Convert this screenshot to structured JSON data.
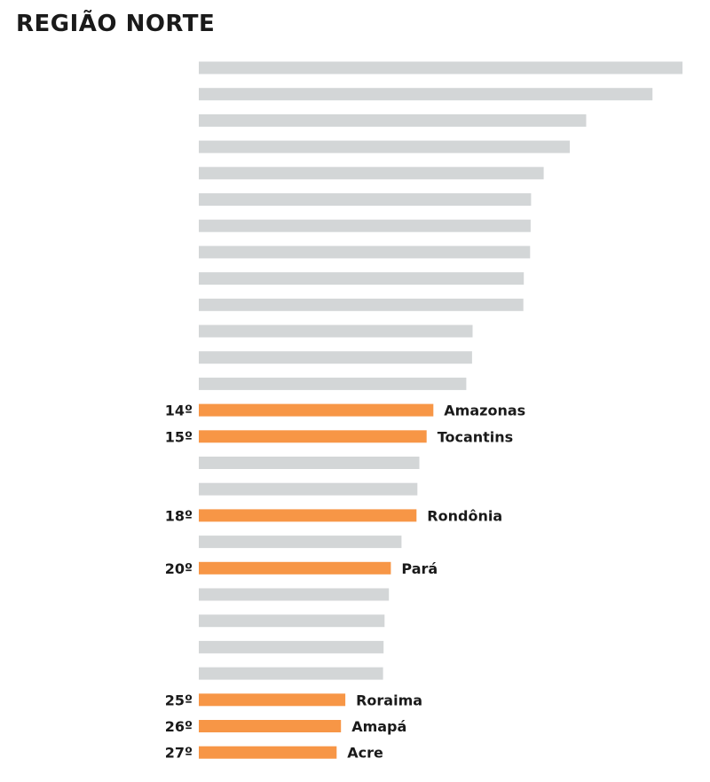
{
  "chart_data": {
    "type": "bar",
    "orientation": "horizontal",
    "title": "REGIÃO NORTE",
    "colors": {
      "highlight": "#F79646",
      "other": "#D3D6D7"
    },
    "bars": [
      {
        "value": 100.0
      },
      {
        "value": 93.8
      },
      {
        "value": 80.1
      },
      {
        "value": 76.7
      },
      {
        "value": 71.3
      },
      {
        "value": 68.7
      },
      {
        "value": 68.6
      },
      {
        "value": 68.5
      },
      {
        "value": 67.2
      },
      {
        "value": 67.1
      },
      {
        "value": 56.6
      },
      {
        "value": 56.5
      },
      {
        "value": 55.3
      },
      {
        "value": 48.5,
        "rank": "14º",
        "name": "Amazonas",
        "highlight": true
      },
      {
        "value": 47.1,
        "rank": "15º",
        "name": "Tocantins",
        "highlight": true
      },
      {
        "value": 45.6
      },
      {
        "value": 45.2
      },
      {
        "value": 45.0,
        "rank": "18º",
        "name": "Rondônia",
        "highlight": true
      },
      {
        "value": 41.9
      },
      {
        "value": 39.7,
        "rank": "20º",
        "name": "Pará",
        "highlight": true
      },
      {
        "value": 39.3
      },
      {
        "value": 38.4
      },
      {
        "value": 38.2
      },
      {
        "value": 38.1
      },
      {
        "value": 30.3,
        "rank": "25º",
        "name": "Roraima",
        "highlight": true
      },
      {
        "value": 29.4,
        "rank": "26º",
        "name": "Amapá",
        "highlight": true
      },
      {
        "value": 28.5,
        "rank": "27º",
        "name": "Acre",
        "highlight": true
      }
    ]
  }
}
